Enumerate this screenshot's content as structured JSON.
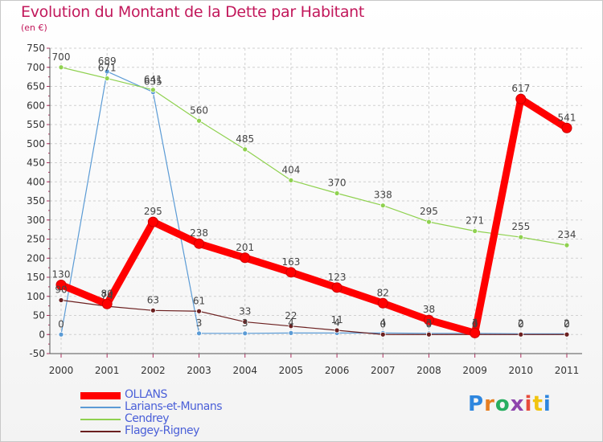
{
  "chart_data": {
    "type": "line",
    "title": "Evolution du Montant de la Dette par Habitant",
    "unit_label": "(en €)",
    "categories": [
      "2000",
      "2001",
      "2002",
      "2003",
      "2004",
      "2005",
      "2006",
      "2007",
      "2008",
      "2009",
      "2010",
      "2011"
    ],
    "ylim": [
      -50,
      750
    ],
    "yticks": [
      -50,
      0,
      50,
      100,
      150,
      200,
      250,
      300,
      350,
      400,
      450,
      500,
      550,
      600,
      650,
      700,
      750
    ],
    "series": [
      {
        "name": "OLLANS",
        "color": "#ff0000",
        "values": [
          130,
          80,
          295,
          238,
          201,
          163,
          123,
          82,
          38,
          4,
          617,
          541
        ]
      },
      {
        "name": "Larians-et-Munans",
        "color": "#5b9bd5",
        "values": [
          0,
          689,
          635,
          3,
          3,
          4,
          4,
          4,
          3,
          3,
          2,
          2
        ]
      },
      {
        "name": "Cendrey",
        "color": "#8fd14f",
        "values": [
          700,
          671,
          641,
          560,
          485,
          404,
          370,
          338,
          295,
          271,
          255,
          234
        ]
      },
      {
        "name": "Flagey-Rigney",
        "color": "#6b1f1f",
        "values": [
          90,
          74,
          63,
          61,
          33,
          22,
          11,
          0,
          0,
          0,
          0,
          0
        ]
      }
    ],
    "legend_position": "bottom-left"
  },
  "logo": {
    "text": "Proxiti",
    "colors": [
      "#2e86de",
      "#e67e22",
      "#27ae60",
      "#8e44ad",
      "#e74c3c",
      "#f1c40f",
      "#2e86de"
    ]
  }
}
